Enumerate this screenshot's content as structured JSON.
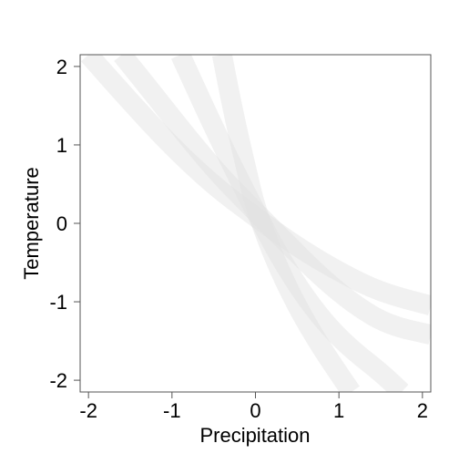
{
  "chart_data": {
    "type": "line",
    "title": "",
    "xlabel": "Precipitation",
    "ylabel": "Temperature",
    "xlim": [
      -2.1,
      2.1
    ],
    "ylim": [
      -2.15,
      2.15
    ],
    "xticks": [
      -2,
      -1,
      0,
      1,
      2
    ],
    "xtick_labels": [
      "-2",
      "-1",
      "0",
      "1",
      "2"
    ],
    "yticks": [
      -2,
      -1,
      0,
      1,
      2
    ],
    "ytick_labels": [
      "-2",
      "-1",
      "0",
      "1",
      "2"
    ],
    "grid": false,
    "legend": "none",
    "band_color": "#e0e0e0",
    "series": [
      {
        "x": [
          -2.0,
          -1.5,
          -1.0,
          -0.5,
          0.0,
          0.5,
          1.0,
          1.5,
          2.1
        ],
        "y": [
          2.15,
          1.55,
          0.98,
          0.48,
          0.08,
          -0.3,
          -0.62,
          -0.88,
          -1.05
        ]
      },
      {
        "x": [
          -1.6,
          -1.2,
          -0.8,
          -0.4,
          0.0,
          0.4,
          0.8,
          1.2,
          1.6,
          2.1
        ],
        "y": [
          2.15,
          1.62,
          1.08,
          0.58,
          0.15,
          -0.28,
          -0.7,
          -1.05,
          -1.3,
          -1.42
        ]
      },
      {
        "x": [
          -0.9,
          -0.6,
          -0.3,
          0.0,
          0.3,
          0.6,
          0.9,
          1.2,
          1.5,
          1.75
        ],
        "y": [
          2.15,
          1.45,
          0.78,
          0.15,
          -0.45,
          -0.95,
          -1.35,
          -1.65,
          -1.9,
          -2.15
        ]
      },
      {
        "x": [
          -0.4,
          -0.3,
          -0.2,
          -0.1,
          0.0,
          0.2,
          0.4,
          0.6,
          0.8,
          1.0,
          1.15
        ],
        "y": [
          2.15,
          1.6,
          1.1,
          0.65,
          0.2,
          -0.38,
          -0.85,
          -1.25,
          -1.6,
          -1.92,
          -2.15
        ]
      }
    ]
  }
}
